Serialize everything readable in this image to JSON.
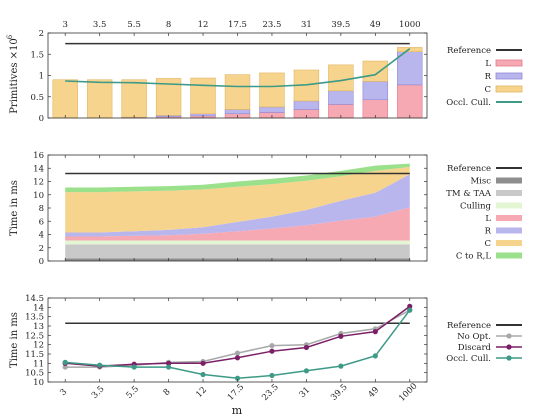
{
  "x_axis": {
    "label": "m",
    "categories": [
      "3",
      "3.5",
      "5.5",
      "8",
      "12",
      "17.5",
      "23.5",
      "31",
      "39.5",
      "49",
      "1000"
    ]
  },
  "colors": {
    "reference": "#333333",
    "L": "#f6a9b3",
    "R": "#b9b6ee",
    "C": "#f7d48e",
    "occl_cull": "#3d9a86",
    "misc": "#8e8e8e",
    "tm_taa": "#c9c9c9",
    "culling": "#e4f5d3",
    "c_to_rl": "#9be08a",
    "no_opt": "#a8a8a8",
    "discard": "#7c1f66"
  },
  "chart_data": [
    {
      "type": "bar",
      "ylabel": "Primitives ×10",
      "ylabel_exp": "6",
      "ylim": [
        0,
        2
      ],
      "yticks": [
        "0",
        "0.5",
        "1",
        "1.5",
        "2"
      ],
      "categories": [
        "3",
        "3.5",
        "5.5",
        "8",
        "12",
        "17.5",
        "23.5",
        "31",
        "39.5",
        "49",
        "1000"
      ],
      "stacked": true,
      "legend_position": "right",
      "series": [
        {
          "name": "L",
          "values": [
            0.0,
            0.0,
            0.01,
            0.03,
            0.05,
            0.1,
            0.13,
            0.2,
            0.32,
            0.43,
            0.78
          ]
        },
        {
          "name": "R",
          "values": [
            0.0,
            0.0,
            0.01,
            0.03,
            0.05,
            0.1,
            0.13,
            0.2,
            0.32,
            0.43,
            0.78
          ]
        },
        {
          "name": "C",
          "values": [
            0.9,
            0.9,
            0.88,
            0.87,
            0.84,
            0.82,
            0.8,
            0.73,
            0.61,
            0.48,
            0.1
          ]
        }
      ],
      "reference": 1.75,
      "occl_cull": [
        0.87,
        0.84,
        0.83,
        0.8,
        0.77,
        0.74,
        0.74,
        0.78,
        0.88,
        1.02,
        1.63
      ],
      "legend": [
        "Reference",
        "L",
        "R",
        "C",
        "Occl. Cull."
      ]
    },
    {
      "type": "area",
      "ylabel": "Time in ms",
      "ylim": [
        0,
        16
      ],
      "yticks": [
        "0",
        "2",
        "4",
        "6",
        "8",
        "10",
        "12",
        "14",
        "16"
      ],
      "categories": [
        "3",
        "3.5",
        "5.5",
        "8",
        "12",
        "17.5",
        "23.5",
        "31",
        "39.5",
        "49",
        "1000"
      ],
      "stacked": true,
      "legend_position": "right",
      "series": [
        {
          "name": "Misc",
          "values": [
            0.4,
            0.4,
            0.4,
            0.4,
            0.4,
            0.4,
            0.4,
            0.4,
            0.4,
            0.4,
            0.4
          ]
        },
        {
          "name": "TM & TAA",
          "values": [
            2.1,
            2.1,
            2.1,
            2.1,
            2.1,
            2.1,
            2.1,
            2.1,
            2.1,
            2.1,
            2.1
          ]
        },
        {
          "name": "Culling",
          "values": [
            0.6,
            0.6,
            0.6,
            0.6,
            0.6,
            0.6,
            0.6,
            0.6,
            0.6,
            0.6,
            0.6
          ]
        },
        {
          "name": "L",
          "values": [
            0.6,
            0.6,
            0.7,
            0.8,
            1.0,
            1.4,
            1.8,
            2.3,
            3.0,
            3.6,
            5.0
          ]
        },
        {
          "name": "R",
          "values": [
            0.6,
            0.6,
            0.7,
            0.8,
            1.0,
            1.4,
            1.8,
            2.3,
            3.0,
            3.6,
            5.0
          ]
        },
        {
          "name": "C",
          "values": [
            6.1,
            6.1,
            6.0,
            5.9,
            5.7,
            5.3,
            4.9,
            4.4,
            3.7,
            3.3,
            1.1
          ]
        },
        {
          "name": "C to R,L",
          "values": [
            0.7,
            0.7,
            0.7,
            0.7,
            0.7,
            0.8,
            0.8,
            0.8,
            0.8,
            0.8,
            0.5
          ]
        }
      ],
      "reference": 13.2,
      "legend": [
        "Reference",
        "Misc",
        "TM & TAA",
        "Culling",
        "L",
        "R",
        "C",
        "C to R,L"
      ]
    },
    {
      "type": "line",
      "ylabel": "Time in ms",
      "ylim": [
        10,
        14.5
      ],
      "yticks": [
        "10",
        "10.5",
        "11",
        "11.5",
        "12",
        "12.5",
        "13",
        "13.5",
        "14",
        "14.5"
      ],
      "categories": [
        "3",
        "3.5",
        "5.5",
        "8",
        "12",
        "17.5",
        "23.5",
        "31",
        "39.5",
        "49",
        "1000"
      ],
      "legend_position": "right",
      "reference": 13.15,
      "series": [
        {
          "name": "No Opt.",
          "values": [
            10.8,
            10.8,
            10.9,
            11.05,
            11.1,
            11.55,
            11.95,
            12.0,
            12.6,
            12.85,
            13.85
          ]
        },
        {
          "name": "Discard",
          "values": [
            11.0,
            10.85,
            10.95,
            11.0,
            11.0,
            11.3,
            11.65,
            11.85,
            12.45,
            12.7,
            14.05
          ]
        },
        {
          "name": "Occl. Cull.",
          "values": [
            11.05,
            10.9,
            10.8,
            10.8,
            10.4,
            10.2,
            10.35,
            10.6,
            10.85,
            11.4,
            13.85
          ]
        }
      ],
      "legend": [
        "Reference",
        "No Opt.",
        "Discard",
        "Occl. Cull."
      ]
    }
  ]
}
